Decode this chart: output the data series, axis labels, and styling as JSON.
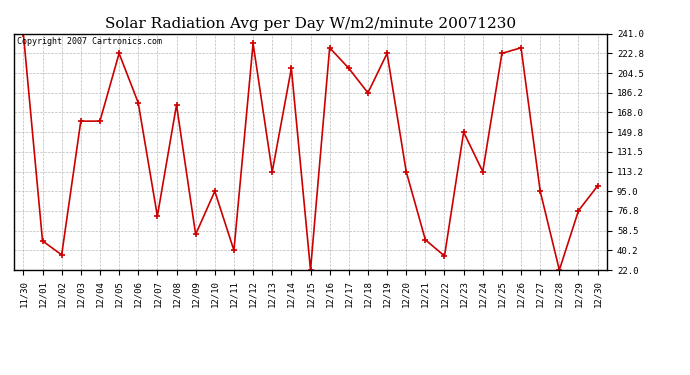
{
  "title": "Solar Radiation Avg per Day W/m2/minute 20071230",
  "copyright": "Copyright 2007 Cartronics.com",
  "labels": [
    "11/30",
    "12/01",
    "12/02",
    "12/03",
    "12/04",
    "12/05",
    "12/06",
    "12/07",
    "12/08",
    "12/09",
    "12/10",
    "12/11",
    "12/12",
    "12/13",
    "12/14",
    "12/15",
    "12/16",
    "12/17",
    "12/18",
    "12/19",
    "12/20",
    "12/21",
    "12/22",
    "12/23",
    "12/24",
    "12/25",
    "12/26",
    "12/27",
    "12/28",
    "12/29",
    "12/30"
  ],
  "values": [
    241.0,
    49.0,
    36.0,
    160.0,
    160.0,
    222.8,
    177.0,
    72.0,
    175.0,
    55.0,
    95.0,
    40.2,
    232.0,
    113.0,
    209.0,
    22.0,
    228.0,
    209.0,
    186.2,
    222.8,
    113.2,
    50.0,
    35.0,
    149.8,
    113.2,
    222.8,
    228.0,
    95.0,
    22.0,
    77.0,
    100.0
  ],
  "ylim_min": 22.0,
  "ylim_max": 241.0,
  "yticks": [
    22.0,
    40.2,
    58.5,
    76.8,
    95.0,
    113.2,
    131.5,
    149.8,
    168.0,
    186.2,
    204.5,
    222.8,
    241.0
  ],
  "line_color": "#cc0000",
  "marker_color": "#cc0000",
  "bg_color": "#ffffff",
  "grid_color": "#aaaaaa",
  "title_fontsize": 11,
  "tick_fontsize": 6.5,
  "copyright_fontsize": 6
}
